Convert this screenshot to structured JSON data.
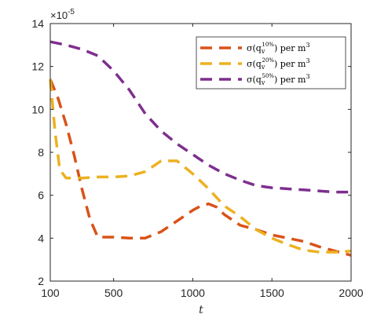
{
  "chart_data": {
    "type": "line",
    "title": "",
    "xlabel": "t",
    "ylabel": "",
    "y_exponent_base": "×10",
    "y_exponent_power": "-5",
    "xlim": [
      100,
      2000
    ],
    "ylim": [
      2,
      14
    ],
    "xticks": [
      100,
      500,
      1000,
      1500,
      2000
    ],
    "yticks": [
      2,
      4,
      6,
      8,
      10,
      12,
      14
    ],
    "grid": false,
    "legend_position": "top-right",
    "series": [
      {
        "name": "σ(q_v^{10%}) per m³",
        "legend_main": "σ(q",
        "legend_sub": "v",
        "legend_sup": "10%",
        "legend_tail": ") per m",
        "legend_power": "3",
        "color": "#D95319",
        "x": [
          100,
          150,
          200,
          250,
          300,
          350,
          400,
          500,
          600,
          700,
          800,
          900,
          1000,
          1050,
          1100,
          1150,
          1200,
          1300,
          1400,
          1500,
          1600,
          1700,
          1800,
          1900,
          2000
        ],
        "y": [
          11.4,
          10.5,
          9.3,
          7.9,
          6.3,
          4.9,
          4.05,
          4.05,
          4.0,
          4.0,
          4.3,
          4.8,
          5.3,
          5.5,
          5.6,
          5.45,
          5.1,
          4.6,
          4.4,
          4.15,
          4.0,
          3.85,
          3.6,
          3.4,
          3.2
        ]
      },
      {
        "name": "σ(q_v^{20%}) per m³",
        "legend_main": "σ(q",
        "legend_sub": "v",
        "legend_sup": "20%",
        "legend_tail": ") per m",
        "legend_power": "3",
        "color": "#EDB120",
        "x": [
          100,
          130,
          160,
          200,
          250,
          300,
          400,
          500,
          600,
          700,
          800,
          900,
          1000,
          1100,
          1200,
          1300,
          1400,
          1500,
          1600,
          1700,
          1800,
          1900,
          2000
        ],
        "y": [
          11.4,
          9.0,
          7.2,
          6.8,
          6.8,
          6.8,
          6.85,
          6.85,
          6.9,
          7.1,
          7.6,
          7.6,
          7.0,
          6.3,
          5.5,
          5.0,
          4.4,
          4.0,
          3.7,
          3.45,
          3.35,
          3.35,
          3.4
        ]
      },
      {
        "name": "σ(q_v^{50%}) per m³",
        "legend_main": "σ(q",
        "legend_sub": "v",
        "legend_sup": "50%",
        "legend_tail": ") per m",
        "legend_power": "3",
        "color": "#7E2F8E",
        "x": [
          100,
          200,
          300,
          400,
          500,
          600,
          700,
          800,
          900,
          1000,
          1100,
          1200,
          1300,
          1400,
          1500,
          1600,
          1700,
          1800,
          1900,
          2000
        ],
        "y": [
          13.15,
          13.0,
          12.8,
          12.5,
          11.8,
          10.9,
          9.8,
          9.0,
          8.4,
          7.9,
          7.4,
          7.0,
          6.7,
          6.45,
          6.35,
          6.3,
          6.25,
          6.2,
          6.15,
          6.15
        ]
      }
    ]
  }
}
